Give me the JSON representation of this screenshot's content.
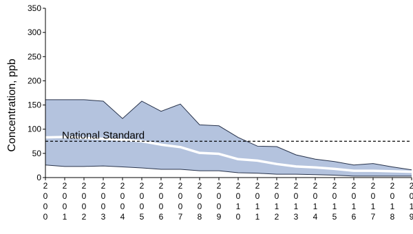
{
  "chart_data": {
    "type": "area",
    "title": "",
    "xlabel": "",
    "ylabel": "Concentration, ppb",
    "ylim": [
      0,
      350
    ],
    "yticks": [
      0,
      50,
      100,
      150,
      200,
      250,
      300,
      350
    ],
    "x": [
      "2000",
      "2001",
      "2002",
      "2003",
      "2004",
      "2005",
      "2006",
      "2007",
      "2008",
      "2009",
      "2010",
      "2011",
      "2012",
      "2013",
      "2014",
      "2015",
      "2016",
      "2017",
      "2018",
      "2019"
    ],
    "series": [
      {
        "role": "upper-band",
        "values": [
          161,
          161,
          161,
          158,
          122,
          158,
          137,
          152,
          109,
          107,
          83,
          65,
          64,
          47,
          38,
          33,
          26,
          29,
          22,
          16
        ]
      },
      {
        "role": "lower-band",
        "values": [
          26,
          23,
          23,
          24,
          22,
          20,
          17,
          17,
          14,
          14,
          10,
          9,
          7,
          7,
          6,
          5,
          3,
          3,
          3,
          3
        ]
      },
      {
        "role": "mean",
        "values": [
          83,
          84,
          82,
          80,
          78,
          75,
          68,
          63,
          51,
          49,
          38,
          35,
          28,
          23,
          21,
          18,
          14,
          14,
          13,
          12
        ]
      }
    ],
    "reference_line": {
      "label": "National Standard",
      "value": 75
    },
    "grid": false,
    "colors": {
      "band_fill": "#b4c3de",
      "band_edge": "#27324a",
      "mean_line": "#ffffff",
      "axis": "#000000",
      "reference_line": "#000000"
    }
  }
}
